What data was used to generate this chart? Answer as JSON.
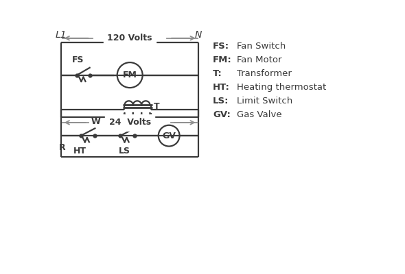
{
  "bg_color": "#ffffff",
  "line_color": "#3a3a3a",
  "arrow_color": "#909090",
  "legend": [
    [
      "FS:",
      "Fan Switch"
    ],
    [
      "FM:",
      "Fan Motor"
    ],
    [
      "T:",
      "Transformer"
    ],
    [
      "HT:",
      "Heating thermostat"
    ],
    [
      "LS:",
      "Limit Switch"
    ],
    [
      "GV:",
      "Gas Valve"
    ]
  ],
  "L1_label": "L1",
  "N_label": "N",
  "volts120": "120 Volts",
  "volts24": "24  Volts"
}
